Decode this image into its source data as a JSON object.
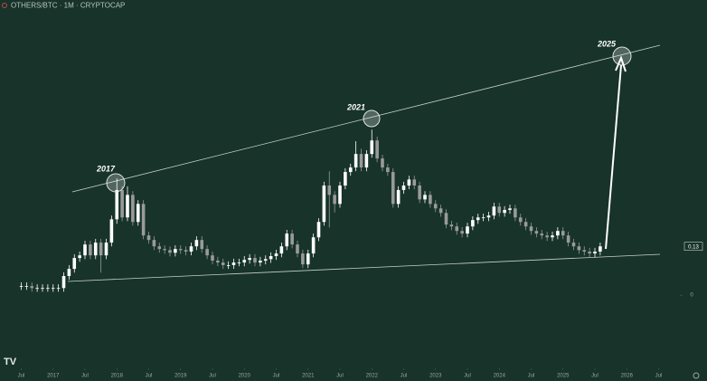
{
  "chart_data": {
    "type": "candlestick",
    "title": "OTHERS/BTC · 1M · CRYPTOCAP",
    "up_color": "#ffffff",
    "down_color": "#9a9a9a",
    "x": [
      "2016-07",
      "2016-08",
      "2016-09",
      "2016-10",
      "2016-11",
      "2016-12",
      "2017-01",
      "2017-02",
      "2017-03",
      "2017-04",
      "2017-05",
      "2017-06",
      "2017-07",
      "2017-08",
      "2017-09",
      "2017-10",
      "2017-11",
      "2017-12",
      "2018-01",
      "2018-02",
      "2018-03",
      "2018-04",
      "2018-05",
      "2018-06",
      "2018-07",
      "2018-08",
      "2018-09",
      "2018-10",
      "2018-11",
      "2018-12",
      "2019-01",
      "2019-02",
      "2019-03",
      "2019-04",
      "2019-05",
      "2019-06",
      "2019-07",
      "2019-08",
      "2019-09",
      "2019-10",
      "2019-11",
      "2019-12",
      "2020-01",
      "2020-02",
      "2020-03",
      "2020-04",
      "2020-05",
      "2020-06",
      "2020-07",
      "2020-08",
      "2020-09",
      "2020-10",
      "2020-11",
      "2020-12",
      "2021-01",
      "2021-02",
      "2021-03",
      "2021-04",
      "2021-05",
      "2021-06",
      "2021-07",
      "2021-08",
      "2021-09",
      "2021-10",
      "2021-11",
      "2021-12",
      "2022-01",
      "2022-02",
      "2022-03",
      "2022-04",
      "2022-05",
      "2022-06",
      "2022-07",
      "2022-08",
      "2022-09",
      "2022-10",
      "2022-11",
      "2022-12",
      "2023-01",
      "2023-02",
      "2023-03",
      "2023-04",
      "2023-05",
      "2023-06",
      "2023-07",
      "2023-08",
      "2023-09",
      "2023-10",
      "2023-11",
      "2023-12",
      "2024-01",
      "2024-02",
      "2024-03",
      "2024-04",
      "2024-05",
      "2024-06",
      "2024-07",
      "2024-08",
      "2024-09",
      "2024-10",
      "2024-11",
      "2024-12",
      "2025-01",
      "2025-02",
      "2025-03",
      "2025-04",
      "2025-05",
      "2025-06",
      "2025-07",
      "2025-08"
    ],
    "open": [
      0.024,
      0.024,
      0.024,
      0.019,
      0.019,
      0.019,
      0.019,
      0.019,
      0.019,
      0.051,
      0.07,
      0.099,
      0.106,
      0.135,
      0.106,
      0.14,
      0.106,
      0.14,
      0.202,
      0.28,
      0.207,
      0.267,
      0.195,
      0.243,
      0.159,
      0.147,
      0.13,
      0.123,
      0.12,
      0.113,
      0.123,
      0.12,
      0.116,
      0.13,
      0.147,
      0.123,
      0.106,
      0.092,
      0.087,
      0.08,
      0.08,
      0.087,
      0.087,
      0.094,
      0.099,
      0.087,
      0.092,
      0.096,
      0.104,
      0.111,
      0.13,
      0.164,
      0.135,
      0.111,
      0.082,
      0.111,
      0.154,
      0.195,
      0.292,
      0.267,
      0.243,
      0.292,
      0.328,
      0.34,
      0.376,
      0.34,
      0.376,
      0.412,
      0.364,
      0.34,
      0.328,
      0.243,
      0.28,
      0.292,
      0.308,
      0.292,
      0.255,
      0.267,
      0.243,
      0.231,
      0.219,
      0.188,
      0.183,
      0.171,
      0.164,
      0.183,
      0.2,
      0.207,
      0.207,
      0.212,
      0.236,
      0.219,
      0.227,
      0.231,
      0.207,
      0.195,
      0.183,
      0.171,
      0.164,
      0.159,
      0.154,
      0.159,
      0.171,
      0.159,
      0.14,
      0.13,
      0.12,
      0.116,
      0.111,
      0.116
    ],
    "high": [
      0.034,
      0.034,
      0.034,
      0.029,
      0.029,
      0.029,
      0.029,
      0.029,
      0.061,
      0.08,
      0.109,
      0.116,
      0.145,
      0.145,
      0.15,
      0.15,
      0.15,
      0.212,
      0.311,
      0.29,
      0.29,
      0.277,
      0.253,
      0.253,
      0.169,
      0.157,
      0.14,
      0.133,
      0.13,
      0.133,
      0.133,
      0.13,
      0.14,
      0.157,
      0.157,
      0.133,
      0.116,
      0.102,
      0.097,
      0.09,
      0.097,
      0.097,
      0.104,
      0.109,
      0.109,
      0.102,
      0.106,
      0.114,
      0.121,
      0.14,
      0.174,
      0.174,
      0.145,
      0.121,
      0.121,
      0.164,
      0.205,
      0.302,
      0.33,
      0.277,
      0.302,
      0.338,
      0.35,
      0.41,
      0.39,
      0.386,
      0.441,
      0.422,
      0.374,
      0.35,
      0.338,
      0.29,
      0.302,
      0.318,
      0.318,
      0.302,
      0.277,
      0.277,
      0.253,
      0.241,
      0.229,
      0.198,
      0.193,
      0.181,
      0.193,
      0.21,
      0.217,
      0.217,
      0.222,
      0.246,
      0.246,
      0.237,
      0.241,
      0.241,
      0.217,
      0.205,
      0.193,
      0.181,
      0.174,
      0.169,
      0.169,
      0.181,
      0.181,
      0.169,
      0.15,
      0.14,
      0.13,
      0.126,
      0.126,
      0.14
    ],
    "low": [
      0.014,
      0.014,
      0.009,
      0.009,
      0.009,
      0.009,
      0.009,
      0.009,
      0.009,
      0.041,
      0.06,
      0.089,
      0.096,
      0.096,
      0.096,
      0.06,
      0.096,
      0.13,
      0.19,
      0.197,
      0.197,
      0.185,
      0.185,
      0.149,
      0.137,
      0.12,
      0.113,
      0.11,
      0.103,
      0.103,
      0.11,
      0.106,
      0.106,
      0.12,
      0.113,
      0.096,
      0.082,
      0.077,
      0.07,
      0.07,
      0.07,
      0.077,
      0.077,
      0.084,
      0.077,
      0.077,
      0.082,
      0.086,
      0.094,
      0.101,
      0.12,
      0.125,
      0.101,
      0.072,
      0.072,
      0.101,
      0.144,
      0.185,
      0.18,
      0.22,
      0.233,
      0.282,
      0.318,
      0.33,
      0.33,
      0.33,
      0.366,
      0.354,
      0.33,
      0.318,
      0.233,
      0.233,
      0.27,
      0.282,
      0.282,
      0.245,
      0.245,
      0.233,
      0.221,
      0.209,
      0.178,
      0.173,
      0.161,
      0.154,
      0.154,
      0.173,
      0.19,
      0.197,
      0.197,
      0.202,
      0.209,
      0.209,
      0.217,
      0.197,
      0.185,
      0.173,
      0.161,
      0.154,
      0.149,
      0.144,
      0.144,
      0.149,
      0.149,
      0.13,
      0.12,
      0.11,
      0.106,
      0.101,
      0.101,
      0.106
    ],
    "close": [
      0.024,
      0.024,
      0.019,
      0.019,
      0.019,
      0.019,
      0.019,
      0.019,
      0.051,
      0.07,
      0.099,
      0.106,
      0.135,
      0.106,
      0.14,
      0.106,
      0.14,
      0.202,
      0.28,
      0.207,
      0.267,
      0.195,
      0.243,
      0.159,
      0.147,
      0.13,
      0.123,
      0.12,
      0.113,
      0.123,
      0.12,
      0.116,
      0.13,
      0.147,
      0.123,
      0.106,
      0.092,
      0.087,
      0.08,
      0.08,
      0.087,
      0.087,
      0.094,
      0.099,
      0.087,
      0.092,
      0.096,
      0.104,
      0.111,
      0.13,
      0.164,
      0.135,
      0.111,
      0.082,
      0.111,
      0.154,
      0.195,
      0.292,
      0.267,
      0.243,
      0.292,
      0.328,
      0.34,
      0.376,
      0.34,
      0.376,
      0.412,
      0.364,
      0.34,
      0.328,
      0.243,
      0.28,
      0.292,
      0.308,
      0.292,
      0.255,
      0.267,
      0.243,
      0.231,
      0.219,
      0.188,
      0.183,
      0.171,
      0.164,
      0.183,
      0.2,
      0.207,
      0.207,
      0.212,
      0.236,
      0.219,
      0.227,
      0.231,
      0.207,
      0.195,
      0.183,
      0.171,
      0.164,
      0.159,
      0.154,
      0.159,
      0.171,
      0.159,
      0.14,
      0.13,
      0.12,
      0.116,
      0.111,
      0.116,
      0.13
    ],
    "xlim": [
      "2016-03",
      "2026-11"
    ],
    "xticks": [
      {
        "value": "2016-07",
        "label": "Jul"
      },
      {
        "value": "2017-01",
        "label": "2017"
      },
      {
        "value": "2017-07",
        "label": "Jul"
      },
      {
        "value": "2018-01",
        "label": "2018"
      },
      {
        "value": "2018-07",
        "label": "Jul"
      },
      {
        "value": "2019-01",
        "label": "2019"
      },
      {
        "value": "2019-07",
        "label": "Jul"
      },
      {
        "value": "2020-01",
        "label": "2020"
      },
      {
        "value": "2020-07",
        "label": "Jul"
      },
      {
        "value": "2021-01",
        "label": "2021"
      },
      {
        "value": "2021-07",
        "label": "Jul"
      },
      {
        "value": "2022-01",
        "label": "2022"
      },
      {
        "value": "2022-07",
        "label": "Jul"
      },
      {
        "value": "2023-01",
        "label": "2023"
      },
      {
        "value": "2023-07",
        "label": "Jul"
      },
      {
        "value": "2024-01",
        "label": "2024"
      },
      {
        "value": "2024-07",
        "label": "Jul"
      },
      {
        "value": "2025-01",
        "label": "2025"
      },
      {
        "value": "2025-07",
        "label": "Jul"
      },
      {
        "value": "2026-01",
        "label": "2026"
      },
      {
        "value": "2026-07",
        "label": "Jul"
      }
    ],
    "ylim": [
      -0.19,
      0.786
    ],
    "yticks": [
      0
    ],
    "last_price": 0.13,
    "annotations": [
      {
        "label": "2017"
      },
      {
        "label": "2021"
      },
      {
        "label": "2025"
      }
    ]
  }
}
